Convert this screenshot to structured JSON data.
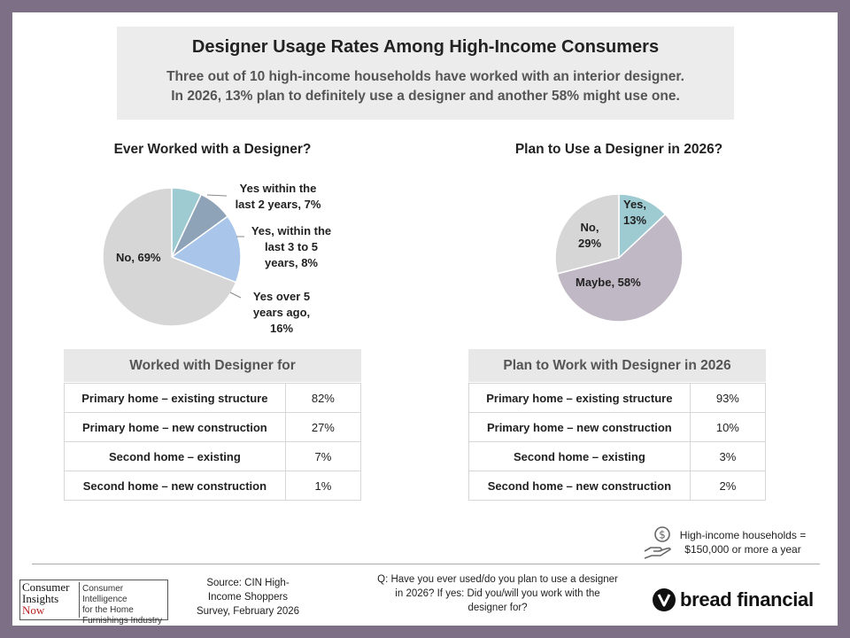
{
  "title": "Designer Usage Rates Among High-Income Consumers",
  "subtitle_lines": [
    "Three out of 10 high-income households have worked with an interior designer.",
    "In 2026, 13% plan to definitely use a designer and another 58% might use one."
  ],
  "chart_data": [
    {
      "type": "pie",
      "title": "Ever Worked with a Designer?",
      "slices": [
        {
          "label": "Yes within the last 2 years, 7%",
          "value": 7,
          "color": "#9ecbd2"
        },
        {
          "label": "Yes, within the last 3 to 5 years, 8%",
          "value": 8,
          "color": "#8fa3b8"
        },
        {
          "label": "Yes over 5 years ago, 16%",
          "value": 16,
          "color": "#a9c6ea"
        },
        {
          "label": "No, 69%",
          "value": 69,
          "color": "#d6d6d6"
        }
      ]
    },
    {
      "type": "pie",
      "title": "Plan to Use a Designer in 2026?",
      "slices": [
        {
          "label": "Yes, 13%",
          "value": 13,
          "color": "#9ecbd2"
        },
        {
          "label": "Maybe, 58%",
          "value": 58,
          "color": "#c0b8c4"
        },
        {
          "label": "No, 29%",
          "value": 29,
          "color": "#d6d6d6"
        }
      ]
    }
  ],
  "pie_labels": {
    "left": {
      "recent_1": "Yes within the",
      "recent_2": "last 2 years, 7%",
      "mid_1": "Yes, within the",
      "mid_2": "last 3 to 5",
      "mid_3": "years, 8%",
      "old_1": "Yes over 5",
      "old_2": "years ago, 16%",
      "no": "No, 69%"
    },
    "right": {
      "yes_1": "Yes,",
      "yes_2": "13%",
      "maybe": "Maybe, 58%",
      "no_1": "No,",
      "no_2": "29%"
    }
  },
  "table_left": {
    "header": "Worked with Designer for",
    "rows": [
      {
        "label": "Primary home – existing structure",
        "value": "82%"
      },
      {
        "label": "Primary home – new construction",
        "value": "27%"
      },
      {
        "label": "Second home – existing",
        "value": "7%"
      },
      {
        "label": "Second home – new construction",
        "value": "1%"
      }
    ]
  },
  "table_right": {
    "header": "Plan to Work with Designer in 2026",
    "rows": [
      {
        "label": "Primary home – existing structure",
        "value": "93%"
      },
      {
        "label": "Primary home – new construction",
        "value": "10%"
      },
      {
        "label": "Second home – existing",
        "value": "3%"
      },
      {
        "label": "Second home – new construction",
        "value": "2%"
      }
    ]
  },
  "note": {
    "line1": "High-income households =",
    "line2": "$150,000 or more a year",
    "icon": "money-hand-icon"
  },
  "footer": {
    "logo_lines": [
      "Consumer",
      "Insights",
      "Now"
    ],
    "logo_tagline": [
      "Consumer Intelligence",
      "for the Home",
      "Furnishings Industry"
    ],
    "source_lines": [
      "Source: CIN High-",
      "Income Shoppers",
      "Survey, February 2026"
    ],
    "question_lines": [
      "Q: Have you ever used/do you plan to use a designer",
      "in 2026? If yes: Did you/will you work with the",
      "designer for?"
    ],
    "brand": "bread financial"
  }
}
